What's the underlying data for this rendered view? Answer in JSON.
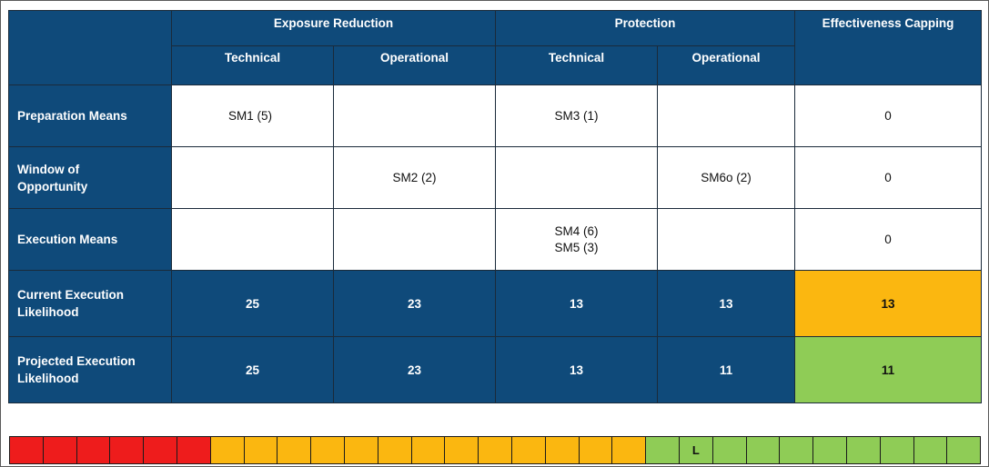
{
  "column_groups": {
    "exposure_reduction": "Exposure Reduction",
    "protection": "Protection",
    "effectiveness_capping": "Effectiveness Capping"
  },
  "sub_columns": {
    "er_technical": "Technical",
    "er_operational": "Operational",
    "pr_technical": "Technical",
    "pr_operational": "Operational"
  },
  "rows": {
    "preparation_means": {
      "label": "Preparation Means",
      "er_technical": "SM1 (5)",
      "er_operational": "",
      "pr_technical": "SM3 (1)",
      "pr_operational": "",
      "capping": "0"
    },
    "window_of_opportunity": {
      "label_line1": "Window of",
      "label_line2": "Opportunity",
      "er_technical": "",
      "er_operational": "SM2 (2)",
      "pr_technical": "",
      "pr_operational": "SM6o (2)",
      "capping": "0"
    },
    "execution_means": {
      "label": "Execution Means",
      "er_technical": "",
      "er_operational": "",
      "pr_technical_line1": "SM4 (6)",
      "pr_technical_line2": "SM5 (3)",
      "pr_operational": "",
      "capping": "0"
    },
    "current_execution_likelihood": {
      "label_line1": "Current Execution",
      "label_line2": "Likelihood",
      "er_technical": "25",
      "er_operational": "23",
      "pr_technical": "13",
      "pr_operational": "13",
      "capping": "13"
    },
    "projected_execution_likelihood": {
      "label_line1": "Projected Execution",
      "label_line2": "Likelihood",
      "er_technical": "25",
      "er_operational": "23",
      "pr_technical": "13",
      "pr_operational": "11",
      "capping": "11"
    }
  },
  "scale": {
    "colors": {
      "red": "#ee1c1c",
      "orange": "#fbb710",
      "green": "#8fcc56"
    },
    "segments": [
      {
        "color": "red",
        "label": ""
      },
      {
        "color": "red",
        "label": ""
      },
      {
        "color": "red",
        "label": ""
      },
      {
        "color": "red",
        "label": ""
      },
      {
        "color": "red",
        "label": ""
      },
      {
        "color": "red",
        "label": ""
      },
      {
        "color": "orange",
        "label": ""
      },
      {
        "color": "orange",
        "label": ""
      },
      {
        "color": "orange",
        "label": ""
      },
      {
        "color": "orange",
        "label": ""
      },
      {
        "color": "orange",
        "label": ""
      },
      {
        "color": "orange",
        "label": ""
      },
      {
        "color": "orange",
        "label": ""
      },
      {
        "color": "orange",
        "label": ""
      },
      {
        "color": "orange",
        "label": ""
      },
      {
        "color": "orange",
        "label": ""
      },
      {
        "color": "orange",
        "label": ""
      },
      {
        "color": "orange",
        "label": ""
      },
      {
        "color": "orange",
        "label": ""
      },
      {
        "color": "green",
        "label": ""
      },
      {
        "color": "green",
        "label": "L"
      },
      {
        "color": "green",
        "label": ""
      },
      {
        "color": "green",
        "label": ""
      },
      {
        "color": "green",
        "label": ""
      },
      {
        "color": "green",
        "label": ""
      },
      {
        "color": "green",
        "label": ""
      },
      {
        "color": "green",
        "label": ""
      },
      {
        "color": "green",
        "label": ""
      },
      {
        "color": "green",
        "label": ""
      }
    ]
  }
}
